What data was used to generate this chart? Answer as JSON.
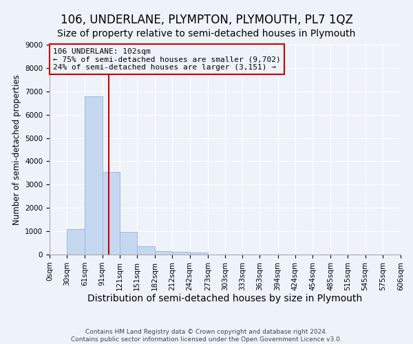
{
  "title": "106, UNDERLANE, PLYMPTON, PLYMOUTH, PL7 1QZ",
  "subtitle": "Size of property relative to semi-detached houses in Plymouth",
  "xlabel": "Distribution of semi-detached houses by size in Plymouth",
  "ylabel": "Number of semi-detached properties",
  "footer_line1": "Contains HM Land Registry data © Crown copyright and database right 2024.",
  "footer_line2": "Contains public sector information licensed under the Open Government Licence v3.0.",
  "property_size": 102,
  "vline_color": "#cc0000",
  "bar_color": "#c5d8f0",
  "bar_edgecolor": "#a0b8d8",
  "annotation_title": "106 UNDERLANE: 102sqm",
  "annotation_line1": "← 75% of semi-detached houses are smaller (9,702)",
  "annotation_line2": "24% of semi-detached houses are larger (3,151) →",
  "annotation_box_edgecolor": "#cc0000",
  "bin_edges": [
    0,
    30,
    61,
    91,
    121,
    151,
    182,
    212,
    242,
    273,
    303,
    333,
    363,
    394,
    424,
    454,
    485,
    515,
    545,
    575,
    606
  ],
  "bin_heights": [
    0,
    1100,
    6800,
    3550,
    960,
    340,
    160,
    120,
    100,
    0,
    0,
    0,
    0,
    0,
    0,
    0,
    0,
    0,
    0,
    0
  ],
  "ylim": [
    0,
    9000
  ],
  "yticks": [
    0,
    1000,
    2000,
    3000,
    4000,
    5000,
    6000,
    7000,
    8000,
    9000
  ],
  "background_color": "#eef3fa",
  "grid_color": "#ffffff",
  "title_fontsize": 12,
  "subtitle_fontsize": 10,
  "tick_labelsize": 7.5,
  "xlabel_fontsize": 10,
  "ylabel_fontsize": 8.5
}
